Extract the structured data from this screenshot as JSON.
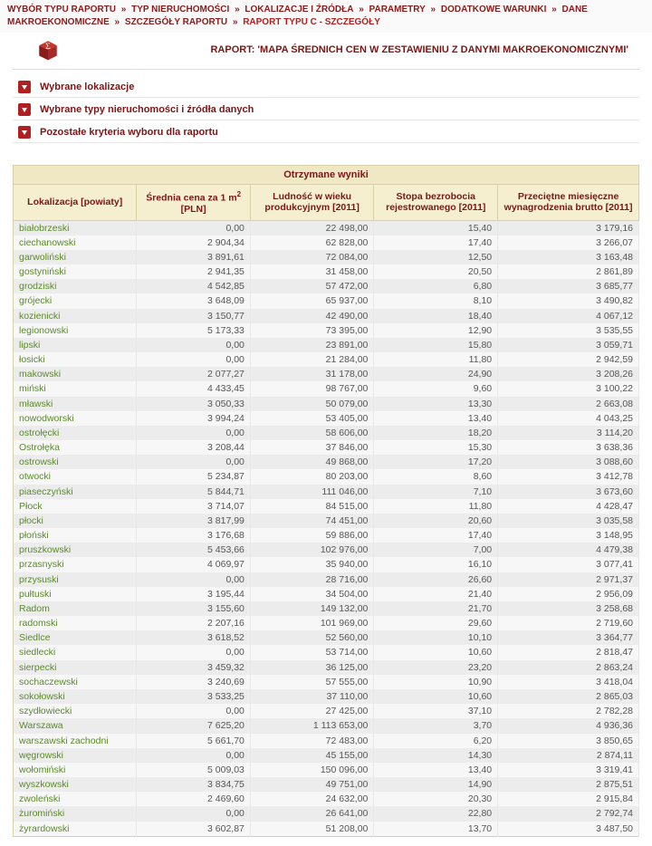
{
  "breadcrumb": {
    "items": [
      "WYBÓR TYPU RAPORTU",
      "TYP NIERUCHOMOŚCI",
      "LOKALIZACJE I ŹRÓDŁA",
      "PARAMETRY",
      "DODATKOWE WARUNKI",
      "DANE MAKROEKONOMICZNE",
      "SZCZEGÓŁY RAPORTU"
    ],
    "current": "RAPORT TYPU C - SZCZEGÓŁY",
    "sep": "»"
  },
  "report": {
    "title": "RAPORT: 'MAPA ŚREDNICH CEN W ZESTAWIENIU Z DANYMI MAKROEKONOMICZNYMI'",
    "icon_name": "sigma-cube-icon"
  },
  "panels": [
    {
      "label": "Wybrane lokalizacje"
    },
    {
      "label": "Wybrane typy nieruchomości i źródła danych"
    },
    {
      "label": "Pozostałe kryteria wyboru dla raportu"
    }
  ],
  "table": {
    "caption": "Otrzymane wyniki",
    "columns": [
      "Lokalizacja [powiaty]",
      "Średnia cena za 1 m² [PLN]",
      "Ludność w wieku produkcyjnym [2011]",
      "Stopa bezrobocia rejestrowanego [2011]",
      "Przeciętne miesięczne wynagrodzenia brutto [2011]"
    ],
    "col_header_html": [
      "Lokalizacja [powiaty]",
      "Średnia cena za 1 m<sup>2</sup> [PLN]",
      "Ludność w wieku produkcyjnym [2011]",
      "Stopa bezrobocia rejestrowanego [2011]",
      "Przeciętne miesięczne wynagrodzenia brutto [2011]"
    ],
    "col_widths": [
      "130px",
      "120px",
      "130px",
      "130px",
      "150px"
    ],
    "rows": [
      [
        "białobrzeski",
        "0,00",
        "22 498,00",
        "15,40",
        "3 179,16"
      ],
      [
        "ciechanowski",
        "2 904,34",
        "62 828,00",
        "17,40",
        "3 266,07"
      ],
      [
        "garwoliński",
        "3 891,61",
        "72 084,00",
        "12,50",
        "3 163,48"
      ],
      [
        "gostyniński",
        "2 941,35",
        "31 458,00",
        "20,50",
        "2 861,89"
      ],
      [
        "grodziski",
        "4 542,85",
        "57 472,00",
        "6,80",
        "3 685,77"
      ],
      [
        "grójecki",
        "3 648,09",
        "65 937,00",
        "8,10",
        "3 490,82"
      ],
      [
        "kozienicki",
        "3 150,77",
        "42 490,00",
        "18,40",
        "4 067,12"
      ],
      [
        "legionowski",
        "5 173,33",
        "73 395,00",
        "12,90",
        "3 535,55"
      ],
      [
        "lipski",
        "0,00",
        "23 891,00",
        "15,80",
        "3 059,71"
      ],
      [
        "łosicki",
        "0,00",
        "21 284,00",
        "11,80",
        "2 942,59"
      ],
      [
        "makowski",
        "2 077,27",
        "31 178,00",
        "24,90",
        "3 208,26"
      ],
      [
        "miński",
        "4 433,45",
        "98 767,00",
        "9,60",
        "3 100,22"
      ],
      [
        "mławski",
        "3 050,33",
        "50 079,00",
        "13,30",
        "2 663,08"
      ],
      [
        "nowodworski",
        "3 994,24",
        "53 405,00",
        "13,40",
        "4 043,25"
      ],
      [
        "ostrołęcki",
        "0,00",
        "58 606,00",
        "18,20",
        "3 114,20"
      ],
      [
        "Ostrołęka",
        "3 208,44",
        "37 846,00",
        "15,30",
        "3 638,36"
      ],
      [
        "ostrowski",
        "0,00",
        "49 868,00",
        "17,20",
        "3 088,60"
      ],
      [
        "otwocki",
        "5 234,87",
        "80 203,00",
        "8,60",
        "3 412,78"
      ],
      [
        "piaseczyński",
        "5 844,71",
        "111 046,00",
        "7,10",
        "3 673,60"
      ],
      [
        "Płock",
        "3 714,07",
        "84 515,00",
        "11,80",
        "4 428,47"
      ],
      [
        "płocki",
        "3 817,99",
        "74 451,00",
        "20,60",
        "3 035,58"
      ],
      [
        "płoński",
        "3 176,68",
        "59 886,00",
        "17,40",
        "3 148,95"
      ],
      [
        "pruszkowski",
        "5 453,66",
        "102 976,00",
        "7,00",
        "4 479,38"
      ],
      [
        "przasnyski",
        "4 069,97",
        "35 940,00",
        "16,10",
        "3 077,41"
      ],
      [
        "przysuski",
        "0,00",
        "28 716,00",
        "26,60",
        "2 971,37"
      ],
      [
        "pułtuski",
        "3 195,44",
        "34 504,00",
        "21,40",
        "2 956,09"
      ],
      [
        "Radom",
        "3 155,60",
        "149 132,00",
        "21,70",
        "3 258,68"
      ],
      [
        "radomski",
        "2 207,16",
        "101 969,00",
        "29,60",
        "2 719,60"
      ],
      [
        "Siedlce",
        "3 618,52",
        "52 560,00",
        "10,10",
        "3 364,77"
      ],
      [
        "siedlecki",
        "0,00",
        "53 714,00",
        "10,60",
        "2 818,47"
      ],
      [
        "sierpecki",
        "3 459,32",
        "36 125,00",
        "23,20",
        "2 863,24"
      ],
      [
        "sochaczewski",
        "3 240,69",
        "57 555,00",
        "10,90",
        "3 418,04"
      ],
      [
        "sokołowski",
        "3 533,25",
        "37 110,00",
        "10,60",
        "2 865,03"
      ],
      [
        "szydłowiecki",
        "0,00",
        "27 425,00",
        "37,10",
        "2 782,28"
      ],
      [
        "Warszawa",
        "7 625,20",
        "1 113 653,00",
        "3,70",
        "4 936,36"
      ],
      [
        "warszawski zachodni",
        "5 661,70",
        "72 483,00",
        "6,20",
        "3 850,65"
      ],
      [
        "węgrowski",
        "0,00",
        "45 155,00",
        "14,30",
        "2 874,11"
      ],
      [
        "wołomiński",
        "5 009,03",
        "150 096,00",
        "13,40",
        "3 319,41"
      ],
      [
        "wyszkowski",
        "3 834,75",
        "49 751,00",
        "14,90",
        "2 875,51"
      ],
      [
        "zwoleński",
        "2 469,60",
        "24 632,00",
        "20,30",
        "2 915,84"
      ],
      [
        "żuromiński",
        "0,00",
        "26 641,00",
        "22,80",
        "2 792,74"
      ],
      [
        "żyrardowski",
        "3 602,87",
        "51 208,00",
        "13,70",
        "3 487,50"
      ]
    ]
  },
  "colors": {
    "brand_dark": "#7a1616",
    "brand_mid": "#8b1a1a",
    "brand_light": "#b02020",
    "header_bg": "#f6efcf",
    "caption_bg": "#f0e7c4",
    "border": "#d9cfa8",
    "row_odd": "#ececec",
    "row_even": "#f7f7f7",
    "name_color": "#5a8a2a"
  }
}
